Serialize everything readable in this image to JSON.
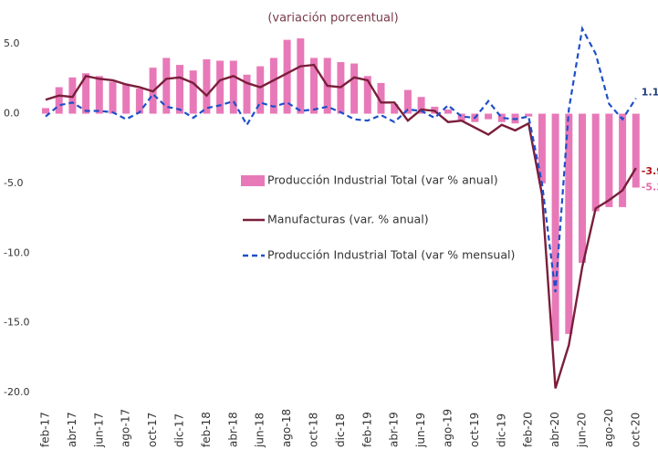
{
  "chart_data": {
    "type": "combo",
    "title": "(variación porcentual)",
    "categories": [
      "feb-17",
      null,
      "abr-17",
      null,
      "jun-17",
      null,
      "ago-17",
      null,
      "oct-17",
      null,
      "dic-17",
      null,
      "feb-18",
      null,
      "abr-18",
      null,
      "jun-18",
      null,
      "ago-18",
      null,
      "oct-18",
      null,
      "dic-18",
      null,
      "feb-19",
      null,
      "abr-19",
      null,
      "jun-19",
      null,
      "ago-19",
      null,
      "oct-19",
      null,
      "dic-19",
      null,
      "feb-20",
      null,
      "abr-20",
      null,
      "jun-20",
      null,
      "ago-20",
      null,
      "oct-20"
    ],
    "series": [
      {
        "name": "Producción Industrial Total (var % anual)",
        "type": "bar",
        "color": "#e879b9",
        "label_color": "#e36aa8",
        "values": [
          0.4,
          1.9,
          2.6,
          2.9,
          2.7,
          2.3,
          2.1,
          1.8,
          3.3,
          4.0,
          3.5,
          3.1,
          3.9,
          3.8,
          3.8,
          2.8,
          3.4,
          4.0,
          5.3,
          5.4,
          4.0,
          4.0,
          3.7,
          3.6,
          2.7,
          2.2,
          0.7,
          1.7,
          1.2,
          0.5,
          0.3,
          -0.5,
          -0.6,
          -0.4,
          -0.6,
          -0.7,
          -0.2,
          -5.0,
          -16.3,
          -15.8,
          -10.7,
          -7.0,
          -6.7,
          -6.7,
          -5.3
        ]
      },
      {
        "name": "Manufacturas (var. % anual)",
        "type": "line",
        "dashed": false,
        "color": "#7a1e3a",
        "label_color": "#b0121d",
        "values": [
          1.0,
          1.3,
          1.2,
          2.7,
          2.5,
          2.4,
          2.1,
          1.9,
          1.6,
          2.5,
          2.6,
          2.2,
          1.3,
          2.4,
          2.7,
          2.2,
          1.9,
          2.4,
          2.9,
          3.4,
          3.5,
          2.0,
          1.9,
          2.6,
          2.4,
          0.8,
          0.8,
          -0.5,
          0.3,
          0.2,
          -0.6,
          -0.5,
          -1.0,
          -1.5,
          -0.8,
          -1.2,
          -0.7,
          -5.8,
          -19.7,
          -16.6,
          -11.0,
          -6.8,
          -6.2,
          -5.5,
          -3.9
        ]
      },
      {
        "name": "Producción Industrial Total (var % mensual)",
        "type": "line",
        "dashed": true,
        "color": "#1f4fc9",
        "label_color": "#1f3a7a",
        "values": [
          -0.2,
          0.6,
          0.8,
          0.2,
          0.2,
          0.1,
          -0.4,
          0.1,
          1.4,
          0.5,
          0.3,
          -0.3,
          0.4,
          0.6,
          0.9,
          -0.8,
          0.8,
          0.5,
          0.8,
          0.2,
          0.3,
          0.5,
          0.1,
          -0.4,
          -0.5,
          -0.1,
          -0.6,
          0.3,
          0.2,
          -0.3,
          0.6,
          -0.2,
          -0.3,
          0.9,
          -0.3,
          -0.4,
          -0.2,
          -5.0,
          -12.8,
          0.3,
          6.1,
          4.3,
          0.7,
          -0.4,
          1.1
        ]
      }
    ],
    "ylim": [
      -20,
      7.5
    ],
    "yticks": [
      {
        "value": 5,
        "label": "5.0"
      },
      {
        "value": 0,
        "label": "0.0"
      },
      {
        "value": -5,
        "label": "-5.0"
      },
      {
        "value": -10,
        "label": "-10.0"
      },
      {
        "value": -15,
        "label": "-15.0"
      },
      {
        "value": -20,
        "label": "-20.0"
      }
    ]
  }
}
